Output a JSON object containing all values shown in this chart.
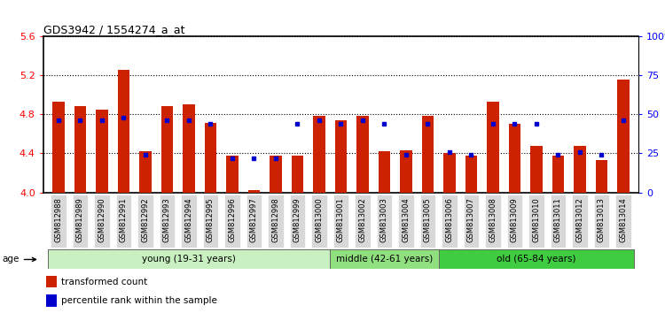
{
  "title": "GDS3942 / 1554274_a_at",
  "samples": [
    "GSM812988",
    "GSM812989",
    "GSM812990",
    "GSM812991",
    "GSM812992",
    "GSM812993",
    "GSM812994",
    "GSM812995",
    "GSM812996",
    "GSM812997",
    "GSM812998",
    "GSM812999",
    "GSM813000",
    "GSM813001",
    "GSM813002",
    "GSM813003",
    "GSM813004",
    "GSM813005",
    "GSM813006",
    "GSM813007",
    "GSM813008",
    "GSM813009",
    "GSM813010",
    "GSM813011",
    "GSM813012",
    "GSM813013",
    "GSM813014"
  ],
  "transformed_count": [
    4.93,
    4.88,
    4.85,
    5.25,
    4.42,
    4.88,
    4.9,
    4.71,
    4.38,
    4.02,
    4.38,
    4.38,
    4.78,
    4.74,
    4.78,
    4.42,
    4.43,
    4.78,
    4.4,
    4.38,
    4.93,
    4.7,
    4.48,
    4.38,
    4.48,
    4.33,
    5.15
  ],
  "percentile": [
    46,
    46,
    46,
    48,
    24,
    46,
    46,
    44,
    22,
    22,
    22,
    44,
    46,
    44,
    46,
    44,
    24,
    44,
    26,
    24,
    44,
    44,
    44,
    24,
    26,
    24,
    46
  ],
  "groups": [
    {
      "label": "young (19-31 years)",
      "start": 0,
      "end": 13,
      "color": "#c8f0c0"
    },
    {
      "label": "middle (42-61 years)",
      "start": 13,
      "end": 18,
      "color": "#90e080"
    },
    {
      "label": "old (65-84 years)",
      "start": 18,
      "end": 27,
      "color": "#40cc40"
    }
  ],
  "ylim_left": [
    4.0,
    5.6
  ],
  "ylim_right": [
    0,
    100
  ],
  "yticks_left": [
    4.0,
    4.4,
    4.8,
    5.2,
    5.6
  ],
  "yticks_right": [
    0,
    25,
    50,
    75,
    100
  ],
  "bar_color": "#cc2200",
  "dot_color": "#0000cc",
  "bar_width": 0.55,
  "base_value": 4.0,
  "tick_bg_color": "#d8d8d8"
}
